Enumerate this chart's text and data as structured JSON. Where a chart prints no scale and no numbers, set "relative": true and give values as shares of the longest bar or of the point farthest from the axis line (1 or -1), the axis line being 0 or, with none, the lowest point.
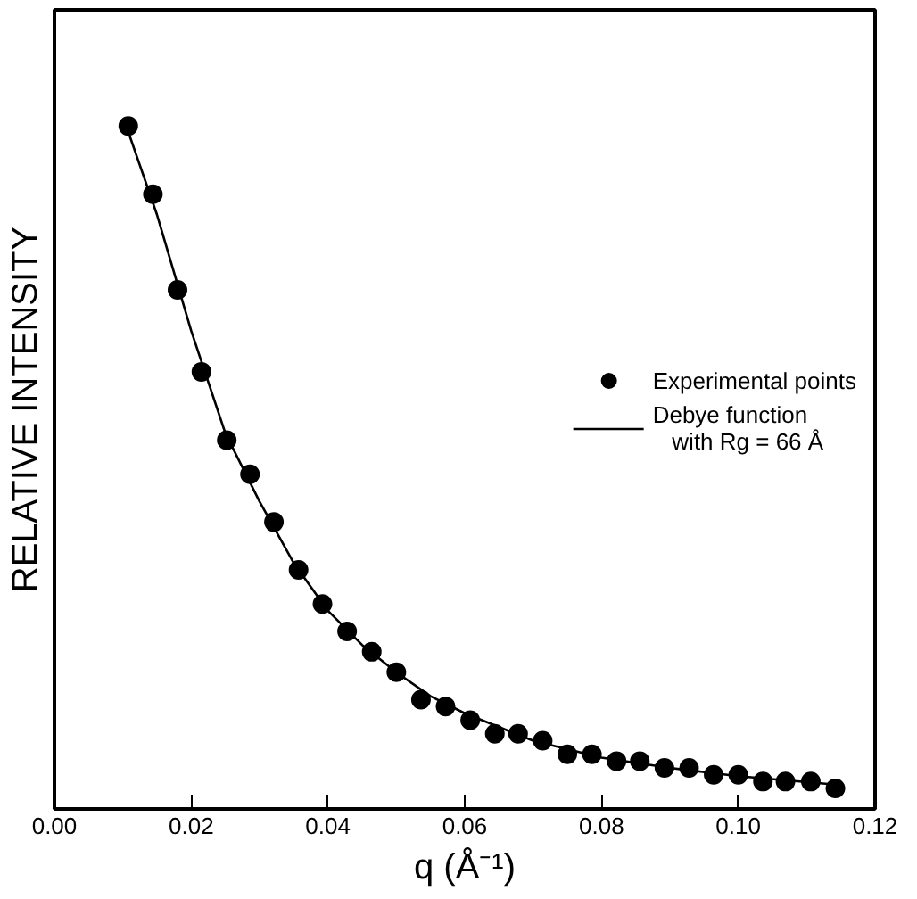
{
  "chart_data": {
    "type": "scatter",
    "relative": true,
    "xlabel": "q (Å⁻¹)",
    "ylabel": "RELATIVE INTENSITY",
    "xlim": [
      0,
      0.12
    ],
    "xticks": [
      {
        "value": 0,
        "label": "0.00"
      },
      {
        "value": 0.02,
        "label": "0.02"
      },
      {
        "value": 0.04,
        "label": "0.04"
      },
      {
        "value": 0.06,
        "label": "0.06"
      },
      {
        "value": 0.08,
        "label": "0.08"
      },
      {
        "value": 0.1,
        "label": "0.10"
      },
      {
        "value": 0.12,
        "label": "0.12"
      }
    ],
    "grid": false,
    "legend": "right",
    "series": [
      {
        "name": "Experimental points",
        "marker": "circle",
        "color": "#000000",
        "x": [
          0.0108,
          0.0144,
          0.018,
          0.0215,
          0.0252,
          0.0286,
          0.0321,
          0.0357,
          0.0392,
          0.0428,
          0.0464,
          0.05,
          0.0536,
          0.0572,
          0.0608,
          0.0644,
          0.0678,
          0.0714,
          0.075,
          0.0786,
          0.0822,
          0.0856,
          0.0892,
          0.0928,
          0.0964,
          0.1,
          0.1036,
          0.1069,
          0.1106,
          0.1142
        ],
        "values": [
          1.0,
          0.9,
          0.76,
          0.64,
          0.54,
          0.49,
          0.42,
          0.35,
          0.3,
          0.26,
          0.23,
          0.2,
          0.16,
          0.15,
          0.13,
          0.11,
          0.11,
          0.1,
          0.08,
          0.08,
          0.07,
          0.07,
          0.06,
          0.06,
          0.05,
          0.05,
          0.04,
          0.04,
          0.04,
          0.03
        ]
      },
      {
        "name": "Debye function\n   with Rg = 66 Å",
        "type": "line",
        "marker": "none",
        "color": "#000000",
        "line_style": "solid",
        "x": [
          0.0105,
          0.015,
          0.02,
          0.025,
          0.03,
          0.035,
          0.04,
          0.045,
          0.05,
          0.055,
          0.06,
          0.07,
          0.08,
          0.09,
          0.1,
          0.115
        ],
        "values": [
          1.0,
          0.87,
          0.7,
          0.55,
          0.45,
          0.36,
          0.29,
          0.24,
          0.2,
          0.165,
          0.14,
          0.1,
          0.075,
          0.06,
          0.048,
          0.035
        ]
      }
    ]
  }
}
